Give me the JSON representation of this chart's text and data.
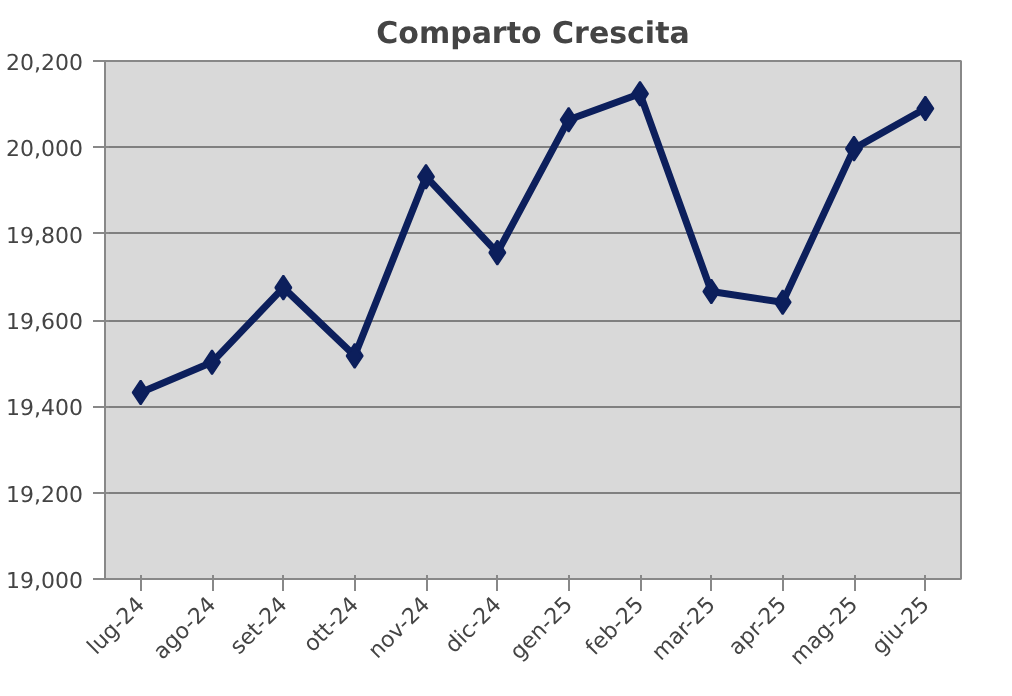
{
  "chart_data": {
    "type": "line",
    "title": "Comparto Crescita",
    "categories": [
      "lug-24",
      "ago-24",
      "set-24",
      "ott-24",
      "nov-24",
      "dic-24",
      "gen-25",
      "feb-25",
      "mar-25",
      "apr-25",
      "mag-25",
      "giu-25"
    ],
    "series": [
      {
        "color": "#0c1f5c",
        "values": [
          19432,
          19502,
          19675,
          19517,
          19932,
          19756,
          20064,
          20124,
          19666,
          19641,
          19997,
          20090
        ]
      }
    ],
    "ylim": [
      19000,
      20200
    ],
    "yticks": [
      {
        "value": 19000,
        "label": "19,000"
      },
      {
        "value": 19200,
        "label": "19,200"
      },
      {
        "value": 19400,
        "label": "19,400"
      },
      {
        "value": 19600,
        "label": "19,600"
      },
      {
        "value": 19800,
        "label": "19,800"
      },
      {
        "value": 20000,
        "label": "20,000"
      },
      {
        "value": 20200,
        "label": "20,200"
      }
    ],
    "grid": "y",
    "marker": "diamond",
    "line_style": "solid"
  }
}
